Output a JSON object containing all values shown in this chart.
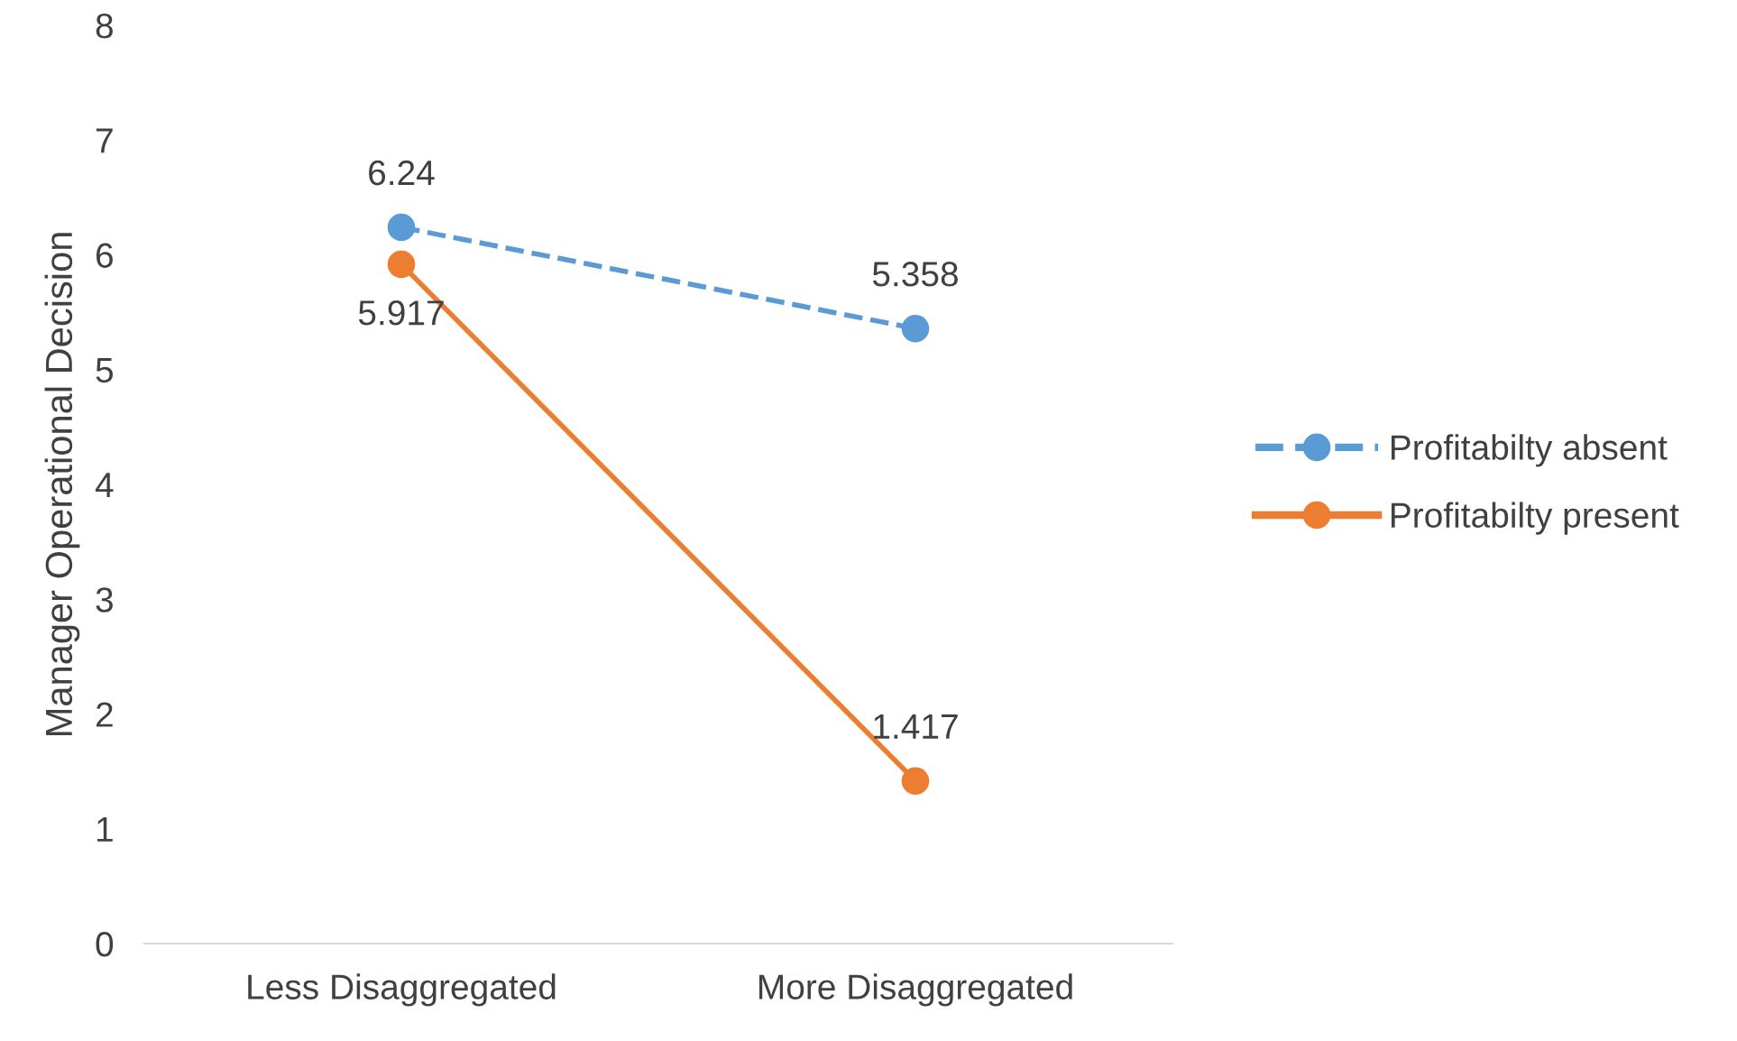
{
  "chart_data": {
    "type": "line",
    "ylabel": "Manager Operational Decision",
    "categories": [
      "Less Disaggregated",
      "More Disaggregated"
    ],
    "series": [
      {
        "name": "Profitabilty absent",
        "color": "#5b9bd5",
        "values": [
          6.24,
          5.358
        ],
        "line_style": "dashed"
      },
      {
        "name": "Profitabilty present",
        "color": "#ed7d31",
        "values": [
          5.917,
          1.417
        ],
        "line_style": "solid"
      }
    ],
    "ylim": [
      0,
      8
    ],
    "yticks": [
      0,
      1,
      2,
      3,
      4,
      5,
      6,
      7,
      8
    ],
    "grid": false,
    "legend": "right",
    "marker": "circle",
    "data_labels": true
  }
}
